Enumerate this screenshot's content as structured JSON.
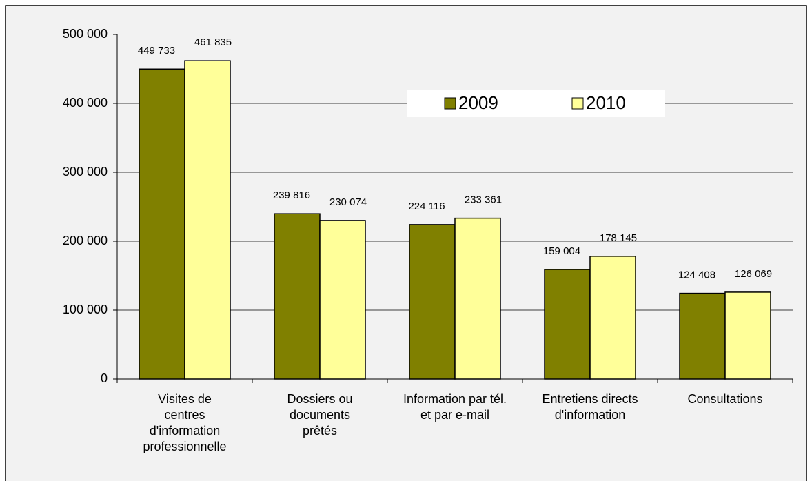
{
  "chart_data": {
    "type": "bar",
    "categories": [
      "Visites de centres d'information professionnelle",
      "Dossiers ou documents prêtés",
      "Information par tél. et par e-mail",
      "Entretiens directs d'information",
      "Consultations"
    ],
    "series": [
      {
        "name": "2009",
        "color": "#808000",
        "values": [
          449733,
          239816,
          224116,
          159004,
          124408
        ],
        "value_labels": [
          "449 733",
          "239 816",
          "224 116",
          "159 004",
          "124 408"
        ]
      },
      {
        "name": "2010",
        "color": "#ffff99",
        "values": [
          461835,
          230074,
          233361,
          178145,
          126069
        ],
        "value_labels": [
          "461 835",
          "230 074",
          "233 361",
          "178 145",
          "126 069"
        ]
      }
    ],
    "ylim": [
      0,
      500000
    ],
    "yticks": [
      0,
      {
        "value": 100000,
        "label": "100 000"
      },
      {
        "value": 200000,
        "label": "200 000"
      },
      {
        "value": 300000,
        "label": "300 000"
      },
      {
        "value": 400000,
        "label": "400 000"
      },
      {
        "value": 500000,
        "label": "500 000"
      }
    ],
    "grid": true,
    "legend": "top"
  }
}
